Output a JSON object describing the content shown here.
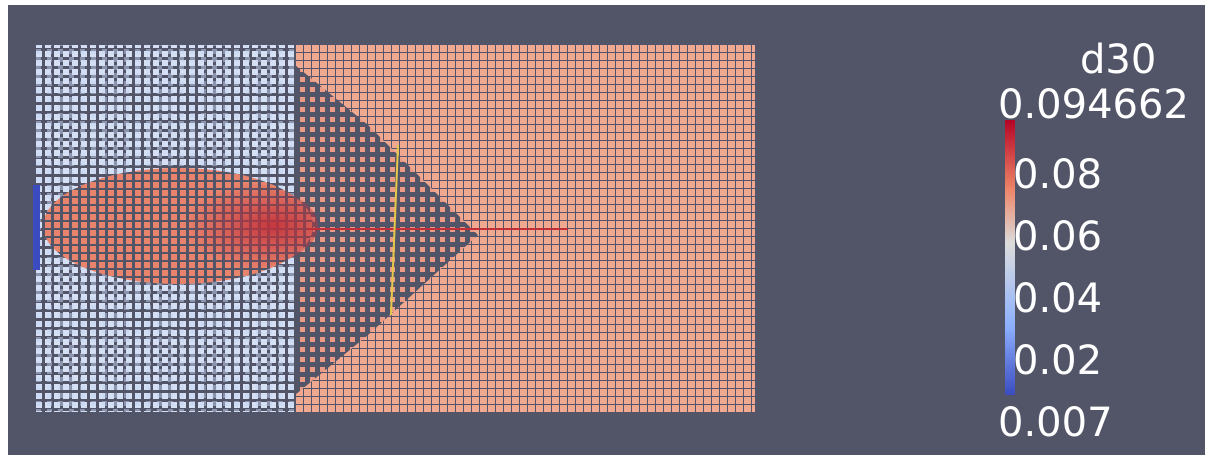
{
  "colorbar": {
    "title": "d30",
    "max_label": "0.094662",
    "ticks": [
      "0.08",
      "0.06",
      "0.04",
      "0.02"
    ],
    "min_label": "0.007"
  }
}
